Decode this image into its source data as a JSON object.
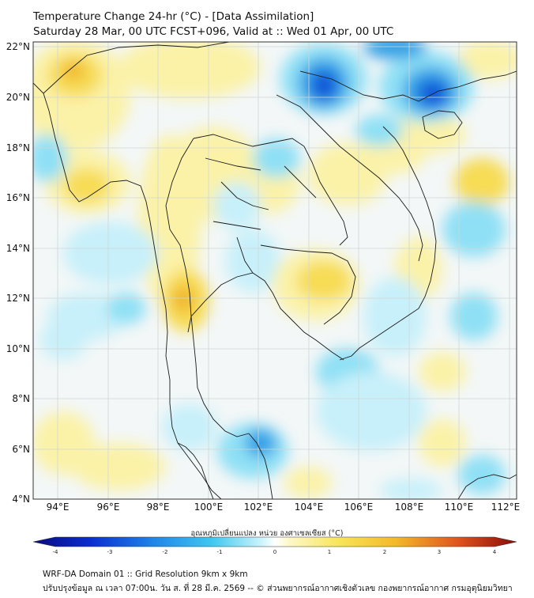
{
  "header": {
    "title_line1": "Temperature Change 24-hr (°C) - [Data Assimilation]",
    "title_line2": "Saturday 28 Mar, 00 UTC FCST+096, Valid at :: Wed 01 Apr, 00 UTC"
  },
  "map": {
    "lat_labels": [
      "22°N",
      "20°N",
      "18°N",
      "16°N",
      "14°N",
      "12°N",
      "10°N",
      "8°N",
      "6°N",
      "4°N"
    ],
    "lon_labels": [
      "94°E",
      "96°E",
      "98°E",
      "100°E",
      "102°E",
      "104°E",
      "106°E",
      "108°E",
      "110°E",
      "112°E"
    ],
    "colors": {
      "strong_blue": "#0a4fd8",
      "blue": "#2f9fe6",
      "light_blue": "#8fe0f5",
      "pale": "#f3f7f7",
      "light_yellow": "#fbf2a8",
      "yellow": "#f7dc55",
      "orange": "#f0b52a"
    }
  },
  "colorbar": {
    "title": "อุณหภูมิเปลี่ยนแปลง หน่วย องศาเซลเซียส (°C)",
    "ticks": [
      "-4",
      "-3",
      "-2",
      "-1",
      "0",
      "1",
      "2",
      "3",
      "4"
    ]
  },
  "footer": {
    "line1": "WRF-DA Domain 01 :: Grid Resolution 9km x 9km",
    "line2": "ปรับปรุงข้อมูล ณ เวลา 07:00น. วัน ส. ที่ 28 มี.ค. 2569 -- © ส่วนพยากรณ์อากาศเชิงตัวเลข กองพยากรณ์อากาศ กรมอุตุนิยมวิทยา"
  }
}
